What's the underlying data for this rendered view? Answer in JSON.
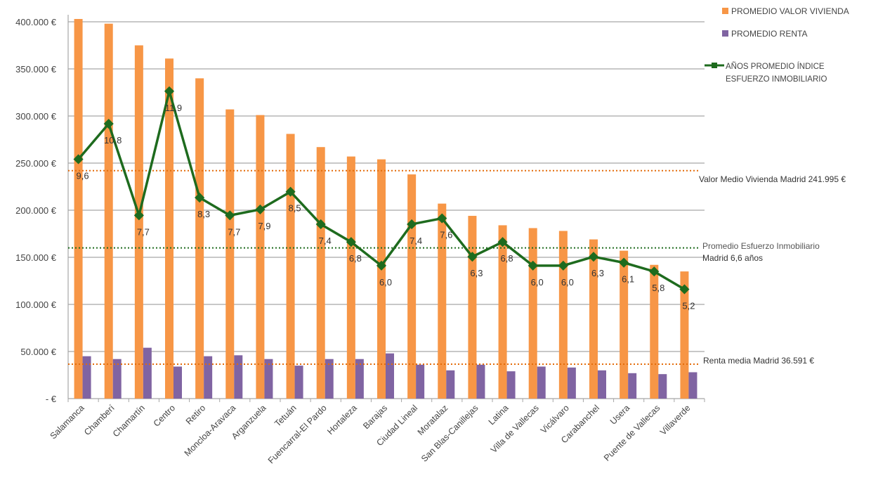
{
  "chart_data": {
    "type": "bar",
    "title": "",
    "xlabel": "",
    "ylabel": "",
    "ylim": [
      0,
      400000
    ],
    "y_ticks": [
      {
        "value": 0,
        "label": "-   €"
      },
      {
        "value": 50000,
        "label": "50.000 €"
      },
      {
        "value": 100000,
        "label": "100.000 €"
      },
      {
        "value": 150000,
        "label": "150.000 €"
      },
      {
        "value": 200000,
        "label": "200.000 €"
      },
      {
        "value": 250000,
        "label": "250.000 €"
      },
      {
        "value": 300000,
        "label": "300.000 €"
      },
      {
        "value": 350000,
        "label": "350.000 €"
      },
      {
        "value": 400000,
        "label": "400.000 €"
      }
    ],
    "grid": true,
    "legend_position": "top-right",
    "categories": [
      "Salamanca",
      "Chamberí",
      "Chamartín",
      "Centro",
      "Retiro",
      "Moncloa-Aravaca",
      "Arganzuela",
      "Tetuán",
      "Fuencarral-El Pardo",
      "Hortaleza",
      "Barajas",
      "Ciudad Lineal",
      "Moratalaz",
      "San Blas-Canillejas",
      "Latina",
      "Villa de Vallecas",
      "Vicálvaro",
      "Carabanchel",
      "Usera",
      "Puente de Vallecas",
      "Villaverde"
    ],
    "series": [
      {
        "name": "PROMEDIO VALOR VIVIENDA",
        "type": "bar",
        "color": "#f79646",
        "values": [
          403000,
          398000,
          375000,
          361000,
          340000,
          307000,
          301000,
          281000,
          267000,
          257000,
          254000,
          238000,
          207000,
          194000,
          184000,
          181000,
          178000,
          169000,
          157000,
          142000,
          135000
        ]
      },
      {
        "name": "PROMEDIO RENTA",
        "type": "bar",
        "color": "#8064a2",
        "values": [
          45000,
          42000,
          54000,
          34000,
          45000,
          46000,
          42000,
          35000,
          42000,
          42000,
          48000,
          36000,
          30000,
          36000,
          29000,
          34000,
          33000,
          30000,
          27000,
          26000,
          28000
        ]
      },
      {
        "name": "AÑOS PROMEDIO  ÍNDICE ESFUERZO INMOBILIARIO",
        "type": "line",
        "color": "#1e6b1e",
        "axis": "secondary",
        "values": [
          9.6,
          10.8,
          7.7,
          11.9,
          8.3,
          7.7,
          7.9,
          8.5,
          7.4,
          6.8,
          6.0,
          7.4,
          7.6,
          6.3,
          6.8,
          6.0,
          6.0,
          6.3,
          6.1,
          5.8,
          5.2
        ],
        "labels": [
          "9,6",
          "10,8",
          "7,7",
          "11,9",
          "8,3",
          "7,7",
          "7,9",
          "8,5",
          "7,4",
          "6,8",
          "6,0",
          "7,4",
          "7,6",
          "6,3",
          "6,8",
          "6,0",
          "6,0",
          "6,3",
          "6,1",
          "5,8",
          "5,2"
        ]
      }
    ],
    "secondary_ylim": [
      1.5,
      14.25
    ],
    "legend": {
      "valor": "PROMEDIO VALOR VIVIENDA",
      "renta": "PROMEDIO RENTA",
      "indice_line1": "AÑOS PROMEDIO  ÍNDICE",
      "indice_line2": "ESFUERZO INMOBILIARIO"
    },
    "reference_lines": [
      {
        "name": "valor-medio",
        "value": 241995,
        "axis": "primary",
        "color": "#e46c0a",
        "label": "Valor Medio Vivienda Madrid 241.995 €"
      },
      {
        "name": "esfuerzo-medio",
        "value": 6.6,
        "axis": "secondary",
        "color": "#1e6b1e",
        "label_line1": "Promedio Esfuerzo Inmobiliario",
        "label_line2": "Madrid 6,6 años"
      },
      {
        "name": "renta-media",
        "value": 36591,
        "axis": "primary",
        "color": "#e46c0a",
        "label": "Renta media Madrid 36.591 €"
      }
    ]
  }
}
